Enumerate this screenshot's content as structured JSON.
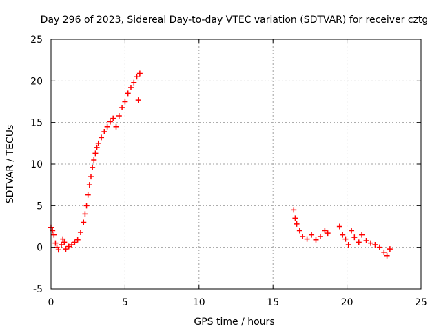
{
  "chart_data": {
    "type": "scatter",
    "title": "Day 296 of 2023, Sidereal Day-to-day VTEC variation (SDTVAR) for receiver cztg",
    "xlabel": "GPS time / hours",
    "ylabel": "SDTVAR / TECUs",
    "xlim": [
      0,
      25
    ],
    "ylim": [
      -5,
      25
    ],
    "xticks": [
      0,
      5,
      10,
      15,
      20,
      25
    ],
    "yticks": [
      -5,
      0,
      5,
      10,
      15,
      20,
      25
    ],
    "grid": true,
    "marker": "plus",
    "color": "#ff0000",
    "series": [
      {
        "name": "SDTVAR",
        "points": [
          [
            0.0,
            2.4
          ],
          [
            0.1,
            2.0
          ],
          [
            0.2,
            1.5
          ],
          [
            0.3,
            0.5
          ],
          [
            0.4,
            0.0
          ],
          [
            0.5,
            -0.3
          ],
          [
            0.7,
            0.3
          ],
          [
            0.8,
            1.0
          ],
          [
            0.9,
            0.6
          ],
          [
            1.0,
            -0.2
          ],
          [
            1.2,
            0.1
          ],
          [
            1.4,
            0.3
          ],
          [
            1.6,
            0.6
          ],
          [
            1.8,
            0.9
          ],
          [
            2.0,
            1.8
          ],
          [
            2.2,
            3.0
          ],
          [
            2.3,
            4.0
          ],
          [
            2.4,
            5.0
          ],
          [
            2.5,
            6.3
          ],
          [
            2.6,
            7.5
          ],
          [
            2.7,
            8.5
          ],
          [
            2.8,
            9.6
          ],
          [
            2.9,
            10.5
          ],
          [
            3.0,
            11.3
          ],
          [
            3.1,
            12.0
          ],
          [
            3.2,
            12.5
          ],
          [
            3.4,
            13.2
          ],
          [
            3.6,
            13.9
          ],
          [
            3.8,
            14.5
          ],
          [
            4.0,
            15.1
          ],
          [
            4.2,
            15.5
          ],
          [
            4.4,
            14.5
          ],
          [
            4.6,
            15.8
          ],
          [
            4.8,
            16.8
          ],
          [
            5.0,
            17.5
          ],
          [
            5.2,
            18.5
          ],
          [
            5.4,
            19.2
          ],
          [
            5.6,
            19.8
          ],
          [
            5.8,
            20.5
          ],
          [
            6.0,
            20.9
          ],
          [
            5.9,
            17.7
          ],
          [
            16.4,
            4.5
          ],
          [
            16.5,
            3.5
          ],
          [
            16.6,
            2.8
          ],
          [
            16.8,
            2.0
          ],
          [
            17.0,
            1.3
          ],
          [
            17.3,
            1.0
          ],
          [
            17.6,
            1.5
          ],
          [
            17.9,
            0.9
          ],
          [
            18.2,
            1.3
          ],
          [
            18.5,
            2.0
          ],
          [
            18.7,
            1.7
          ],
          [
            19.5,
            2.5
          ],
          [
            19.7,
            1.5
          ],
          [
            19.9,
            1.0
          ],
          [
            20.1,
            0.3
          ],
          [
            20.3,
            2.0
          ],
          [
            20.5,
            1.2
          ],
          [
            20.8,
            0.6
          ],
          [
            21.0,
            1.5
          ],
          [
            21.3,
            0.8
          ],
          [
            21.6,
            0.5
          ],
          [
            21.9,
            0.3
          ],
          [
            22.2,
            0.0
          ],
          [
            22.5,
            -0.6
          ],
          [
            22.7,
            -1.0
          ],
          [
            22.9,
            -0.2
          ]
        ]
      }
    ]
  }
}
